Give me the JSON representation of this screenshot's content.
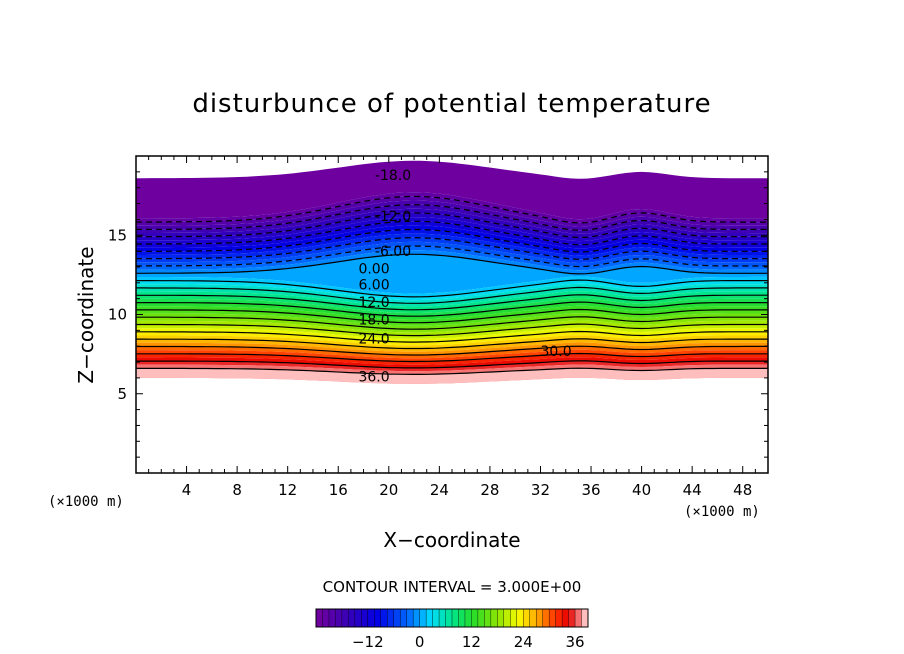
{
  "chart_data": {
    "type": "contour",
    "title": "disturbunce of potential temperature",
    "xlabel": "X−coordinate",
    "ylabel": "Z−coordinate",
    "x_unit": "(×1000 m)",
    "y_unit": "(×1000 m)",
    "xlim": [
      0,
      50
    ],
    "ylim": [
      0,
      20
    ],
    "x_ticks": [
      4,
      8,
      12,
      16,
      20,
      24,
      28,
      32,
      36,
      40,
      44,
      48
    ],
    "y_ticks": [
      5,
      10,
      15
    ],
    "x_tick_labels": [
      "4",
      "8",
      "12",
      "16",
      "20",
      "24",
      "28",
      "32",
      "36",
      "40",
      "44",
      "48"
    ],
    "y_tick_labels": [
      "5",
      "10",
      "15"
    ],
    "contour_interval": 3.0,
    "contour_interval_text": "CONTOUR INTERVAL = 3.000E+00",
    "level_range": [
      -24,
      39
    ],
    "contour_labels": [
      {
        "text": "-18.0",
        "x": 18.9,
        "z": 18.8
      },
      {
        "text": "-12.0",
        "x": 18.9,
        "z": 16.2
      },
      {
        "text": "-6.00",
        "x": 18.9,
        "z": 14.0
      },
      {
        "text": "0.00",
        "x": 17.6,
        "z": 12.9
      },
      {
        "text": "6.00",
        "x": 17.6,
        "z": 11.9
      },
      {
        "text": "12.0",
        "x": 17.6,
        "z": 10.8
      },
      {
        "text": "18.0",
        "x": 17.6,
        "z": 9.7
      },
      {
        "text": "24.0",
        "x": 17.6,
        "z": 8.5
      },
      {
        "text": "30.0",
        "x": 32.0,
        "z": 7.7
      },
      {
        "text": "36.0",
        "x": 17.6,
        "z": 6.1
      }
    ],
    "colorbar": {
      "tick_values": [
        -12,
        0,
        12,
        24,
        36
      ],
      "tick_labels": [
        "−12",
        "0",
        "12",
        "24",
        "36"
      ],
      "range": [
        -24,
        39
      ]
    },
    "negative_contours": "dashed",
    "positive_contours": "solid"
  }
}
